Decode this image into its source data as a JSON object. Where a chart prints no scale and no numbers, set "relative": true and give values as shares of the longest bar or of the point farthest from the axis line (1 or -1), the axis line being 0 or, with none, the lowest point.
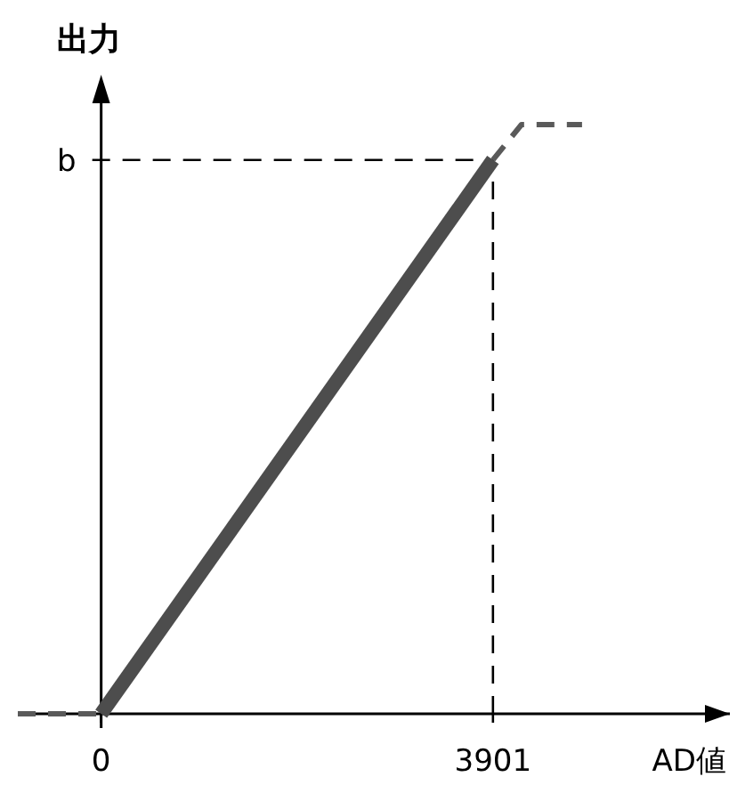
{
  "chart_data": {
    "type": "line",
    "xlabel": "AD値",
    "ylabel": "出力",
    "relative": true,
    "xlim": [
      -830,
      6260
    ],
    "xticks": [
      0,
      3901
    ],
    "marker": "none",
    "line_style": "solid",
    "series": [
      {
        "color": "#4d4d4d",
        "x": [
          0,
          3901
        ],
        "values": [
          0,
          0.94
        ]
      },
      {
        "color": "#5a5a5a",
        "line_style": "dashed",
        "x": [
          -830,
          0
        ],
        "values": [
          0,
          0
        ]
      },
      {
        "color": "#5a5a5a",
        "line_style": "dashed",
        "x": [
          3901,
          4185,
          4788
        ],
        "values": [
          0.94,
          1,
          1
        ]
      }
    ],
    "ref_lines": [
      {
        "axis": "y",
        "value": 0.94,
        "label": "b",
        "color": "#000000",
        "line_style": "dashed"
      },
      {
        "axis": "x",
        "value": 3901,
        "color": "#000000",
        "line_style": "dashed"
      }
    ]
  }
}
